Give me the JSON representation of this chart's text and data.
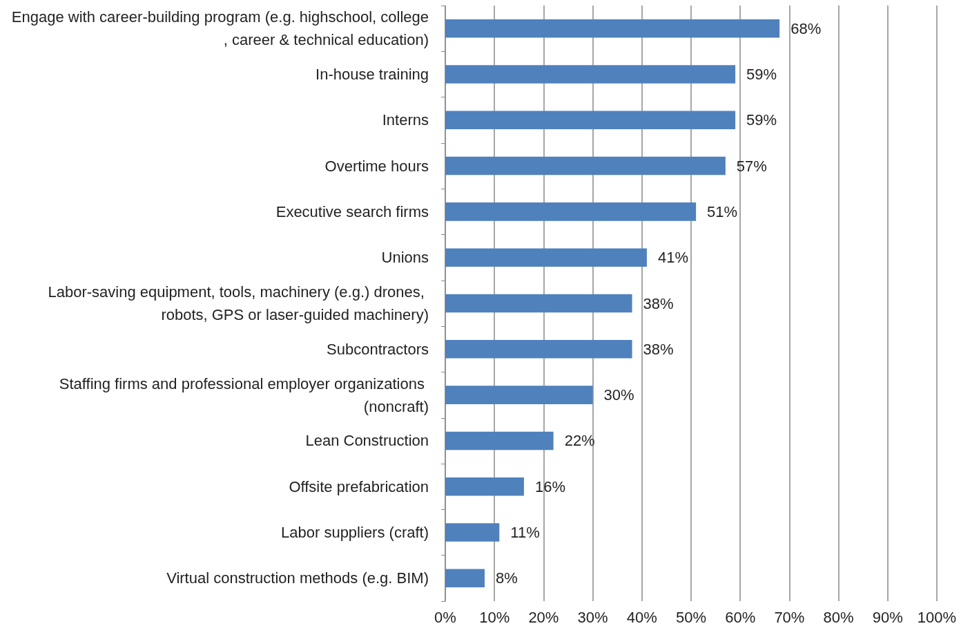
{
  "chart_data": {
    "type": "bar",
    "orientation": "horizontal",
    "categories": [
      "Engage with career-building program (e.g. highschool, college, career & technical education)",
      "In-house training",
      "Interns",
      "Overtime hours",
      "Executive search firms",
      "Unions",
      "Labor-saving equipment, tools, machinery (e.g.) drones, robots, GPS or laser-guided machinery)",
      "Subcontractors",
      "Staffing firms and professional employer organizations (noncraft)",
      "Lean Construction",
      "Offsite prefabrication",
      "Labor suppliers (craft)",
      "Virtual construction methods (e.g. BIM)"
    ],
    "values": [
      68,
      59,
      59,
      57,
      51,
      41,
      38,
      38,
      30,
      22,
      16,
      11,
      8
    ],
    "value_labels": [
      "68%",
      "59%",
      "59%",
      "57%",
      "51%",
      "41%",
      "38%",
      "38%",
      "30%",
      "22%",
      "16%",
      "11%",
      "8%"
    ],
    "color": "#4f81bd",
    "xlim": [
      0,
      100
    ],
    "xticks": [
      {
        "value": 0,
        "label": "0%"
      },
      {
        "value": 10,
        "label": "10%"
      },
      {
        "value": 20,
        "label": "20%"
      },
      {
        "value": 30,
        "label": "30%"
      },
      {
        "value": 40,
        "label": "40%"
      },
      {
        "value": 50,
        "label": "50%"
      },
      {
        "value": 60,
        "label": "60%"
      },
      {
        "value": 70,
        "label": "70%"
      },
      {
        "value": 80,
        "label": "80%"
      },
      {
        "value": 90,
        "label": "90%"
      },
      {
        "value": 100,
        "label": "100%"
      }
    ],
    "grid": "x"
  }
}
